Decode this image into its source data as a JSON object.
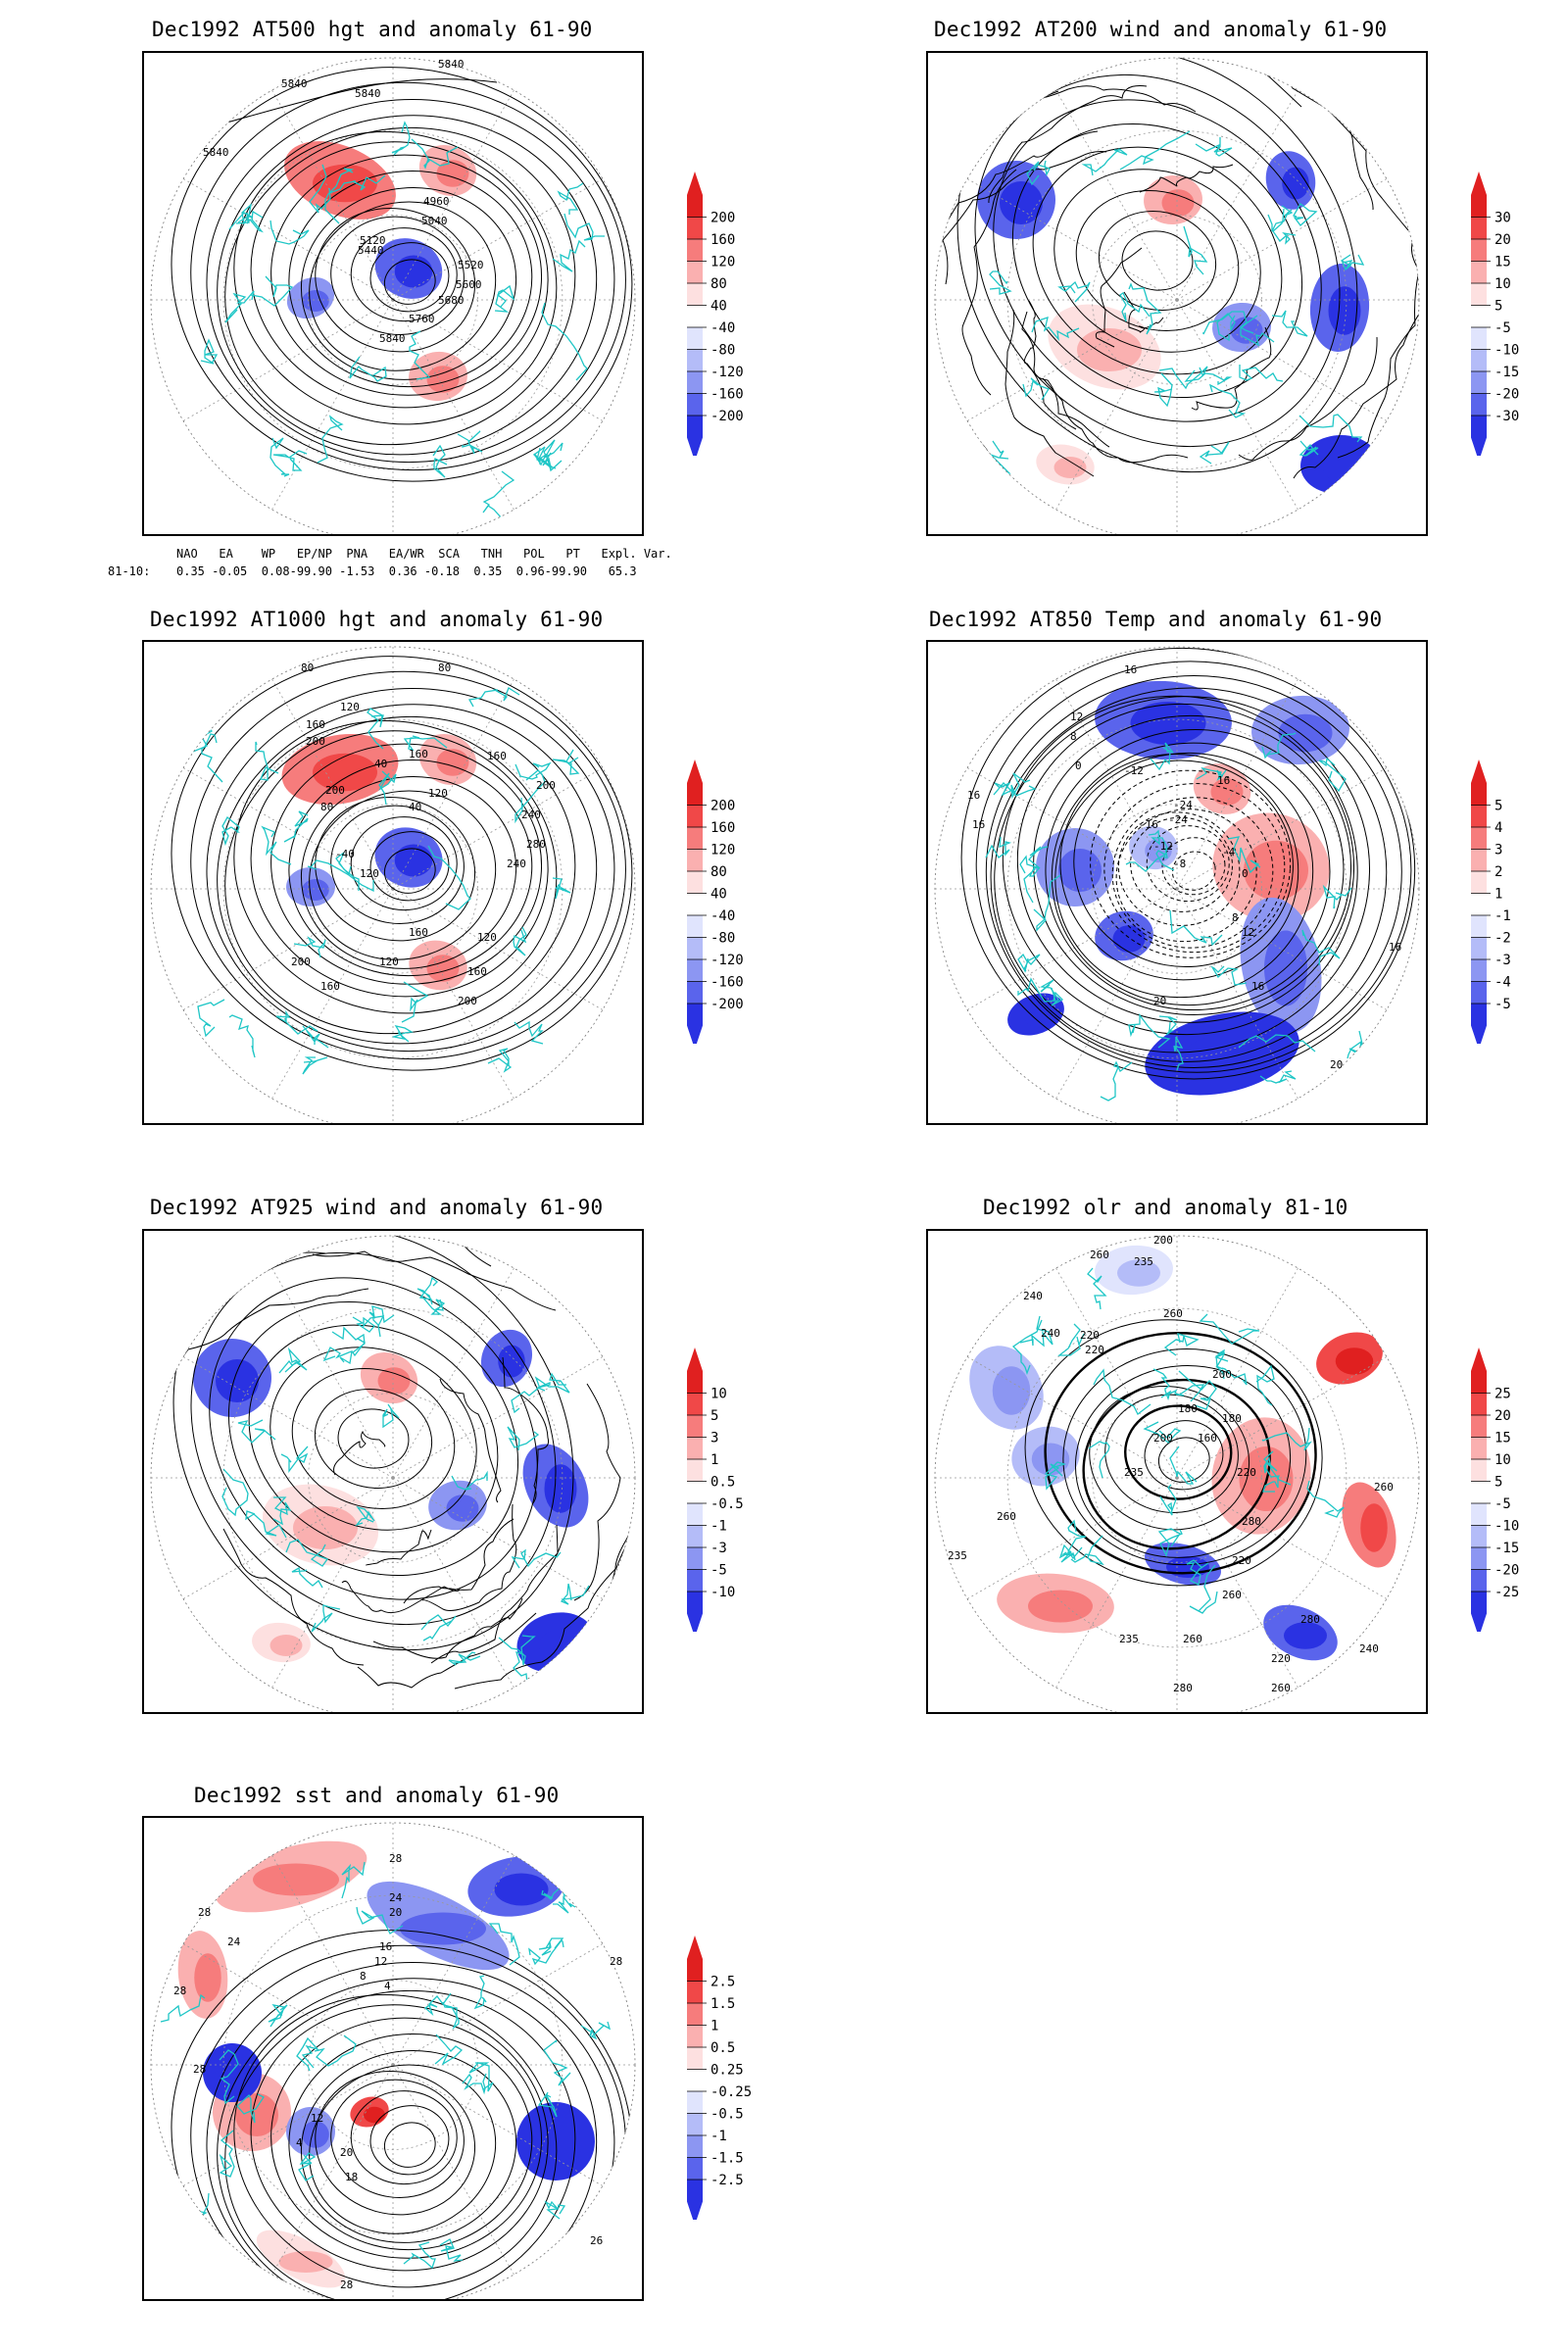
{
  "panels": [
    {
      "id": "p500",
      "title": "Dec1992 AT500 hgt and anomaly 61-90",
      "kind": "hgt",
      "contour_labels": [
        "5840",
        "5840",
        "5840",
        "5840",
        "4960",
        "5040",
        "5120",
        "5440",
        "5520",
        "5600",
        "5680",
        "5760",
        "5840"
      ],
      "colorbar": [
        "200",
        "160",
        "120",
        "80",
        "40",
        "-40",
        "-80",
        "-120",
        "-160",
        "-200"
      ]
    },
    {
      "id": "p200",
      "title": "Dec1992 AT200 wind and anomaly 61-90",
      "kind": "wind",
      "contour_labels": [],
      "colorbar": [
        "30",
        "20",
        "15",
        "10",
        "5",
        "-5",
        "-10",
        "-15",
        "-20",
        "-30"
      ]
    },
    {
      "id": "p1000",
      "title": "Dec1992 AT1000 hgt and anomaly 61-90",
      "kind": "hgt",
      "contour_labels": [
        "80",
        "80",
        "120",
        "160",
        "200",
        "160",
        "40",
        "120",
        "160",
        "200",
        "240",
        "280",
        "240",
        "200",
        "80",
        "40",
        "-40",
        "120",
        "160",
        "200",
        "160",
        "120",
        "120",
        "160",
        "200"
      ],
      "colorbar": [
        "200",
        "160",
        "120",
        "80",
        "40",
        "-40",
        "-80",
        "-120",
        "-160",
        "-200"
      ]
    },
    {
      "id": "p850",
      "title": "Dec1992 AT850 Temp and anomaly 61-90",
      "kind": "temp",
      "contour_labels": [
        "16",
        "12",
        "8",
        "0",
        "-12",
        "16",
        "-24",
        "-24",
        "-16",
        "-12",
        "-8",
        "-4",
        "0",
        "8",
        "12",
        "16",
        "20",
        "16",
        "16",
        "16",
        "20"
      ],
      "colorbar": [
        "5",
        "4",
        "3",
        "2",
        "1",
        "-1",
        "-2",
        "-3",
        "-4",
        "-5"
      ]
    },
    {
      "id": "p925",
      "title": "Dec1992 AT925 wind and anomaly 61-90",
      "kind": "wind",
      "contour_labels": [],
      "colorbar": [
        "10",
        "5",
        "3",
        "1",
        "0.5",
        "-0.5",
        "-1",
        "-3",
        "-5",
        "-10"
      ]
    },
    {
      "id": "polr",
      "title": "Dec1992 olr and anomaly 81-10",
      "kind": "olr",
      "contour_labels": [
        "200",
        "260",
        "235",
        "240",
        "260",
        "220",
        "220",
        "240",
        "200",
        "180",
        "160",
        "180",
        "200",
        "220",
        "235",
        "260",
        "280",
        "260",
        "235",
        "220",
        "260",
        "280",
        "240",
        "235",
        "260",
        "220",
        "280",
        "260"
      ],
      "colorbar": [
        "25",
        "20",
        "15",
        "10",
        "5",
        "-5",
        "-10",
        "-15",
        "-20",
        "-25"
      ]
    },
    {
      "id": "psst",
      "title": "Dec1992 sst and anomaly 61-90",
      "kind": "sst",
      "contour_labels": [
        "28",
        "24",
        "20",
        "16",
        "12",
        "8",
        "4",
        "28",
        "24",
        "28",
        "28",
        "12",
        "4",
        "20",
        "18",
        "28",
        "26",
        "28"
      ],
      "colorbar": [
        "2.5",
        "1.5",
        "1",
        "0.5",
        "0.25",
        "-0.25",
        "-0.5",
        "-1",
        "-1.5",
        "-2.5"
      ]
    }
  ],
  "teleconnection": {
    "header": "NAO   EA    WP   EP/NP  PNA   EA/WR  SCA   TNH   POL   PT   Expl. Var.",
    "row_label": "81-10:",
    "values": "0.35 -0.05  0.08-99.90 -1.53  0.36 -0.18  0.35  0.96-99.90   65.3"
  },
  "colors": {
    "coast": "#1fc6c6",
    "red_scale": [
      "#e02020",
      "#f04848",
      "#f67c7c",
      "#fab0b0",
      "#fde0e0"
    ],
    "blue_scale": [
      "#e0e4fd",
      "#b4bcf8",
      "#8c96f2",
      "#5a64ec",
      "#2a32e2"
    ],
    "contour": "#000000"
  }
}
